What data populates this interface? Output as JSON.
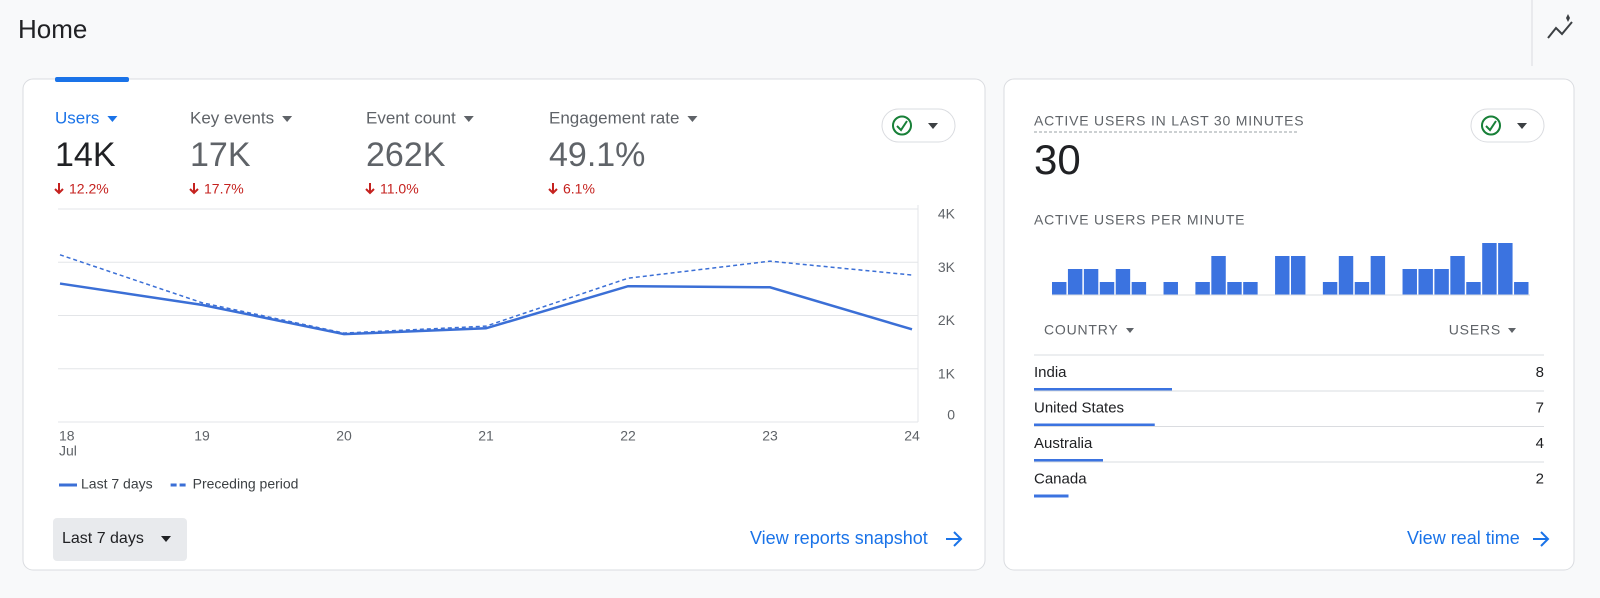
{
  "header": {
    "title": "Home"
  },
  "summary": {
    "metrics": [
      {
        "label": "Users",
        "value": "14K",
        "change": "12.2%"
      },
      {
        "label": "Key events",
        "value": "17K",
        "change": "17.7%"
      },
      {
        "label": "Event count",
        "value": "262K",
        "change": "11.0%"
      },
      {
        "label": "Engagement rate",
        "value": "49.1%",
        "change": "6.1%"
      }
    ],
    "period_button": "Last 7 days",
    "link": "View reports snapshot"
  },
  "chart_data": [
    {
      "type": "line",
      "categories": [
        "18",
        "19",
        "20",
        "21",
        "22",
        "23",
        "24"
      ],
      "month_label": "Jul",
      "series": [
        {
          "name": "Last 7 days",
          "color": "#3b6fd6",
          "style": "solid",
          "values": [
            2600,
            2200,
            1650,
            1760,
            2550,
            2530,
            1740
          ]
        },
        {
          "name": "Preceding period",
          "color": "#3b6fd6",
          "style": "dashed",
          "values": [
            3140,
            2240,
            1670,
            1800,
            2700,
            3020,
            2760
          ]
        }
      ],
      "ylim": [
        0,
        4000
      ],
      "yticks": [
        0,
        {
          "value": 1000,
          "label": "1K"
        },
        {
          "value": 2000,
          "label": "2K"
        },
        {
          "value": 3000,
          "label": "3K"
        },
        {
          "value": 4000,
          "label": "4K"
        }
      ],
      "grid": true
    },
    {
      "type": "bar",
      "title": "ACTIVE USERS PER MINUTE",
      "color": "#3b73e0",
      "values": [
        1,
        2,
        2,
        1,
        2,
        1,
        0,
        1,
        0,
        1,
        3,
        1,
        1,
        0,
        3,
        3,
        0,
        1,
        3,
        1,
        3,
        0,
        2,
        2,
        2,
        3,
        1,
        4,
        4,
        1
      ]
    }
  ],
  "realtime": {
    "title": "ACTIVE USERS IN LAST 30 MINUTES",
    "value": 30,
    "table": {
      "columns": [
        "COUNTRY",
        "USERS"
      ],
      "rows": [
        [
          "India",
          8
        ],
        [
          "United States",
          7
        ],
        [
          "Australia",
          4
        ],
        [
          "Canada",
          2
        ]
      ],
      "bar_color": "#3b73e0"
    },
    "link": "View real time"
  }
}
